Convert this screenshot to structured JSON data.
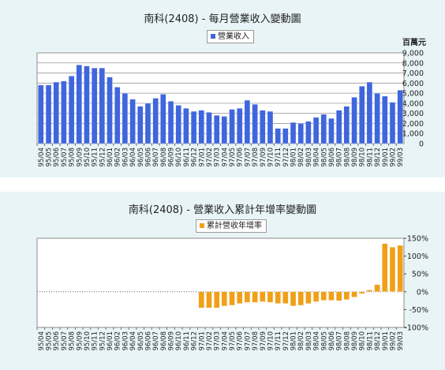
{
  "chart_data": [
    {
      "type": "bar",
      "title": "南科(2408) - 每月營業收入變動圖",
      "ylabel": "百萬元",
      "ylim": [
        0,
        9000
      ],
      "yticks": [
        "0",
        "1,000",
        "2,000",
        "3,000",
        "4,000",
        "5,000",
        "6,000",
        "7,000",
        "8,000",
        "9,000"
      ],
      "grid": true,
      "legend": "top-center",
      "color": "#3f66dd",
      "series": [
        {
          "name": "營業收入",
          "values": [
            5800,
            5800,
            6100,
            6200,
            6700,
            7800,
            7700,
            7500,
            7500,
            6600,
            5600,
            5000,
            4400,
            3700,
            4000,
            4500,
            4900,
            4200,
            3800,
            3500,
            3200,
            3300,
            3100,
            2800,
            2700,
            3400,
            3500,
            4300,
            3900,
            3300,
            3200,
            1500,
            1500,
            2100,
            2000,
            2200,
            2600,
            2900,
            2500,
            3300,
            3700,
            4600,
            5700,
            6100,
            5000,
            4700,
            4100,
            5300
          ]
        }
      ],
      "categories": [
        "95/04",
        "95/05",
        "95/06",
        "95/07",
        "95/08",
        "95/09",
        "95/10",
        "95/11",
        "95/12",
        "96/01",
        "96/02",
        "96/03",
        "96/04",
        "96/05",
        "96/06",
        "96/07",
        "96/08",
        "96/09",
        "96/10",
        "96/11",
        "96/12",
        "97/01",
        "97/02",
        "97/03",
        "97/04",
        "97/05",
        "97/06",
        "97/07",
        "97/08",
        "97/09",
        "97/10",
        "97/11",
        "97/12",
        "98/01",
        "98/02",
        "98/03",
        "98/04",
        "98/05",
        "98/06",
        "98/07",
        "98/08",
        "98/09",
        "98/10",
        "98/11",
        "98/12",
        "99/01",
        "99/02",
        "99/03"
      ],
      "x_tick_labels": [
        "95/04",
        "95/05",
        "95/06",
        "95/07",
        "95/08",
        "95/09",
        "95/10",
        "95/11",
        "95/12",
        "96/01",
        "96/02",
        "96/03",
        "96/04",
        "96/05",
        "96/06",
        "96/07",
        "96/08",
        "96/09",
        "96/10",
        "96/11",
        "96/12",
        "97/01",
        "97/02",
        "97/03",
        "97/04",
        "97/05",
        "97/06",
        "97/07",
        "97/08",
        "97/09",
        "97/10",
        "97/11",
        "97/12",
        "98/01",
        "98/02",
        "98/03",
        "98/04",
        "98/05",
        "98/06",
        "98/07",
        "98/08",
        "98/09",
        "98/10",
        "98/11",
        "98/12",
        "99/01",
        "99/02",
        "99/03"
      ]
    },
    {
      "type": "bar",
      "title": "南科(2408) -  營業收入累計年增率變動圖",
      "ylim": [
        -100,
        150
      ],
      "yticks": [
        "150%",
        "100%",
        "50%",
        "0%",
        "-50%",
        "-100%"
      ],
      "grid": false,
      "legend": "top-center",
      "color": "#f0a018",
      "series": [
        {
          "name": "累計營收年增率",
          "values": [
            0,
            0,
            0,
            0,
            0,
            0,
            0,
            0,
            0,
            0,
            0,
            0,
            0,
            0,
            0,
            0,
            0,
            0,
            0,
            0,
            0,
            -45,
            -45,
            -45,
            -40,
            -38,
            -33,
            -30,
            -30,
            -28,
            -30,
            -33,
            -33,
            -40,
            -38,
            -33,
            -28,
            -24,
            -24,
            -25,
            -22,
            -15,
            -5,
            5,
            20,
            135,
            125,
            130
          ]
        }
      ],
      "categories": [
        "95/04",
        "95/05",
        "95/06",
        "95/07",
        "95/08",
        "95/09",
        "95/10",
        "95/11",
        "95/12",
        "96/01",
        "96/02",
        "96/03",
        "96/04",
        "96/05",
        "96/06",
        "96/07",
        "96/08",
        "96/09",
        "96/10",
        "96/11",
        "96/12",
        "97/01",
        "97/02",
        "97/03",
        "97/04",
        "97/05",
        "97/06",
        "97/07",
        "97/08",
        "97/09",
        "97/10",
        "97/11",
        "97/12",
        "98/01",
        "98/02",
        "98/03",
        "98/04",
        "98/05",
        "98/06",
        "98/07",
        "98/08",
        "98/09",
        "98/10",
        "98/11",
        "98/12",
        "99/01",
        "99/02",
        "99/03"
      ],
      "x_tick_labels": [
        "95/04",
        "95/05",
        "95/06",
        "95/07",
        "95/08",
        "95/09",
        "95/10",
        "95/11",
        "95/12",
        "96/01",
        "96/02",
        "96/03",
        "96/04",
        "96/05",
        "96/06",
        "96/07",
        "96/08",
        "96/09",
        "96/10",
        "96/11",
        "96/12",
        "97/01",
        "97/02",
        "97/03",
        "97/04",
        "97/05",
        "97/06",
        "97/07",
        "97/08",
        "97/09",
        "97/10",
        "97/11",
        "97/12",
        "98/01",
        "98/02",
        "98/03",
        "98/04",
        "98/05",
        "98/06",
        "98/07",
        "98/08",
        "98/09",
        "98/10",
        "98/11",
        "98/12",
        "99/01",
        "99/02",
        "99/03"
      ]
    }
  ]
}
